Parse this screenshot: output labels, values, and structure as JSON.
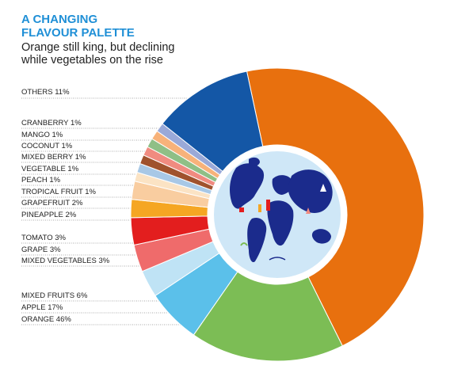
{
  "header": {
    "title_line1": "A CHANGING",
    "title_line2": "FLAVOUR PALETTE",
    "subtitle_line1": "Orange still king, but declining",
    "subtitle_line2": "while vegetables on the rise"
  },
  "chart_data": {
    "type": "pie",
    "donut": true,
    "title": "A CHANGING FLAVOUR PALETTE",
    "subtitle": "Orange still king, but declining while vegetables on the rise",
    "slices": [
      {
        "name": "ORANGE",
        "value": 46,
        "label": "ORANGE 46%",
        "color": "#e8700e"
      },
      {
        "name": "APPLE",
        "value": 17,
        "label": "APPLE 17%",
        "color": "#7cbd55"
      },
      {
        "name": "MIXED FRUITS",
        "value": 6,
        "label": "MIXED FRUITS 6%",
        "color": "#5bc0ea"
      },
      {
        "name": "MIXED VEGETABLES",
        "value": 3,
        "label": "MIXED VEGETABLES 3%",
        "color": "#bfe3f5"
      },
      {
        "name": "GRAPE",
        "value": 3,
        "label": "GRAPE 3%",
        "color": "#ef6b6b"
      },
      {
        "name": "TOMATO",
        "value": 3,
        "label": "TOMATO 3%",
        "color": "#e31e1e"
      },
      {
        "name": "PINEAPPLE",
        "value": 2,
        "label": "PINEAPPLE 2%",
        "color": "#f5a623"
      },
      {
        "name": "GRAPEFRUIT",
        "value": 2,
        "label": "GRAPEFRUIT 2%",
        "color": "#f9cda0"
      },
      {
        "name": "TROPICAL FRUIT",
        "value": 1,
        "label": "TROPICAL FRUIT 1%",
        "color": "#fbe3c4"
      },
      {
        "name": "PEACH",
        "value": 1,
        "label": "PEACH 1%",
        "color": "#a8c8e6"
      },
      {
        "name": "VEGETABLE",
        "value": 1,
        "label": "VEGETABLE 1%",
        "color": "#a0522d"
      },
      {
        "name": "MIXED BERRY",
        "value": 1,
        "label": "MIXED BERRY 1%",
        "color": "#f08b80"
      },
      {
        "name": "COCONUT",
        "value": 1,
        "label": "COCONUT 1%",
        "color": "#8fbf86"
      },
      {
        "name": "MANGO",
        "value": 1,
        "label": "MANGO 1%",
        "color": "#f7b27a"
      },
      {
        "name": "CRANBERRY",
        "value": 1,
        "label": "CRANBERRY 1%",
        "color": "#9aa9d8"
      },
      {
        "name": "OTHERS",
        "value": 11,
        "label": "OTHERS 11%",
        "color": "#1457a6"
      }
    ],
    "center_image": "world-map-illustration"
  }
}
